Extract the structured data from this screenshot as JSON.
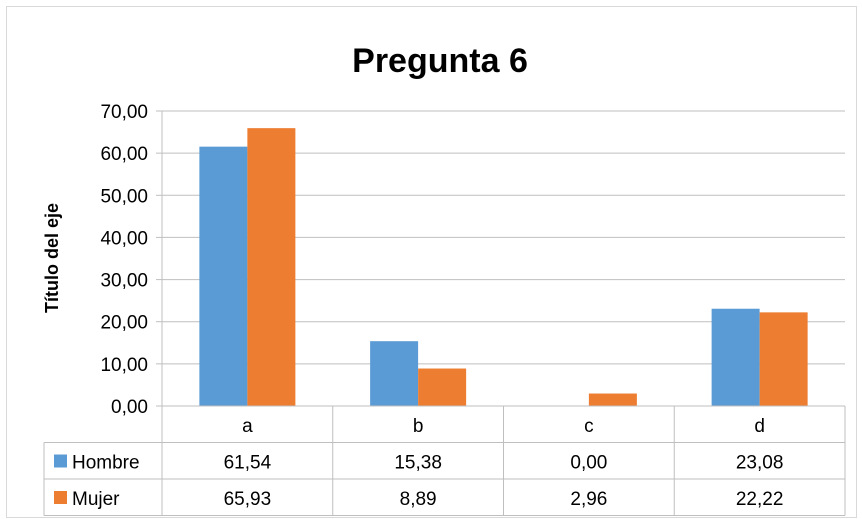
{
  "chart_data": {
    "type": "bar",
    "title": "Pregunta 6",
    "ylabel": "Título del eje",
    "xlabel": "",
    "categories": [
      "a",
      "b",
      "c",
      "d"
    ],
    "series": [
      {
        "name": "Hombre",
        "color": "#5B9BD5",
        "values": [
          61.54,
          15.38,
          0.0,
          23.08
        ],
        "labels": [
          "61,54",
          "15,38",
          "0,00",
          "23,08"
        ]
      },
      {
        "name": "Mujer",
        "color": "#ED7D31",
        "values": [
          65.93,
          8.89,
          2.96,
          22.22
        ],
        "labels": [
          "65,93",
          "8,89",
          "2,96",
          "22,22"
        ]
      }
    ],
    "ylim": [
      0,
      70
    ],
    "yticks": [
      0,
      10,
      20,
      30,
      40,
      50,
      60,
      70
    ],
    "ytick_labels": [
      "0,00",
      "10,00",
      "20,00",
      "30,00",
      "40,00",
      "50,00",
      "60,00",
      "70,00"
    ],
    "grid": true,
    "legend": "data-table"
  }
}
